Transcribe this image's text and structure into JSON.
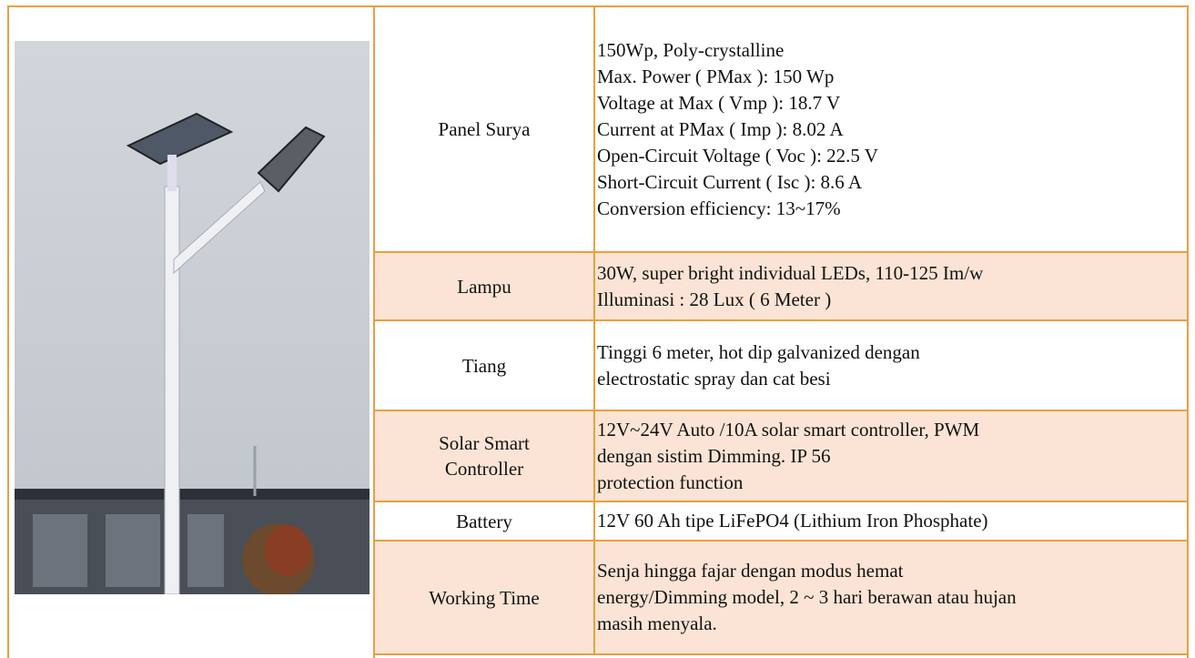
{
  "rows": [
    {
      "label": [
        "Panel Surya"
      ],
      "lines": [
        "150Wp, Poly-crystalline",
        "Max. Power ( PMax ): 150 Wp",
        "Voltage at Max ( Vmp ): 18.7 V",
        "Current at PMax ( Imp ): 8.02 A",
        "Open-Circuit Voltage ( Voc ): 22.5 V",
        "Short-Circuit Current ( Isc ): 8.6 A",
        "Conversion efficiency: 13~17%"
      ]
    },
    {
      "label": [
        "Lampu"
      ],
      "lines": [
        "30W, super bright individual LEDs, 110-125 Im/w",
        "Illuminasi : 28 Lux ( 6 Meter )"
      ]
    },
    {
      "label": [
        "Tiang"
      ],
      "lines": [
        "Tinggi 6 meter, hot dip galvanized dengan",
        "electrostatic spray dan cat besi"
      ]
    },
    {
      "label": [
        "Solar Smart",
        "Controller"
      ],
      "lines": [
        "12V~24V Auto /10A solar smart controller, PWM",
        "dengan sistim Dimming. IP 56",
        "protection function"
      ]
    },
    {
      "label": [
        "Battery"
      ],
      "lines": [
        "12V 60 Ah tipe LiFePO4 (Lithium Iron Phosphate)"
      ]
    },
    {
      "label": [
        "Working Time"
      ],
      "lines": [
        "Senja hingga fajar dengan modus hemat",
        "energy/Dimming model, 2 ~ 3 hari berawan atau hujan",
        "masih menyala."
      ]
    }
  ]
}
